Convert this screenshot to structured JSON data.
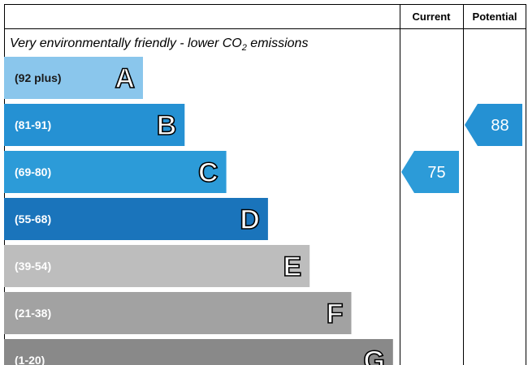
{
  "header": {
    "current": "Current",
    "potential": "Potential"
  },
  "subtitle": {
    "before": "Very environmentally friendly - lower CO",
    "sub": "2",
    "after": " emissions"
  },
  "bands": [
    {
      "range": "(92 plus)",
      "letter": "A",
      "color": "#8ac6ec",
      "text_color": "#1a1a1a"
    },
    {
      "range": "(81-91)",
      "letter": "B",
      "color": "#2591d3",
      "text_color": "#ffffff"
    },
    {
      "range": "(69-80)",
      "letter": "C",
      "color": "#2c9bd8",
      "text_color": "#ffffff"
    },
    {
      "range": "(55-68)",
      "letter": "D",
      "color": "#1a74bb",
      "text_color": "#ffffff"
    },
    {
      "range": "(39-54)",
      "letter": "E",
      "color": "#bdbdbd",
      "text_color": "#ffffff"
    },
    {
      "range": "(21-38)",
      "letter": "F",
      "color": "#a2a2a2",
      "text_color": "#ffffff"
    },
    {
      "range": "(1-20)",
      "letter": "G",
      "color": "#898989",
      "text_color": "#ffffff"
    }
  ],
  "current": {
    "value": "75",
    "color": "#2c9bd8"
  },
  "potential": {
    "value": "88",
    "color": "#2591d3"
  }
}
